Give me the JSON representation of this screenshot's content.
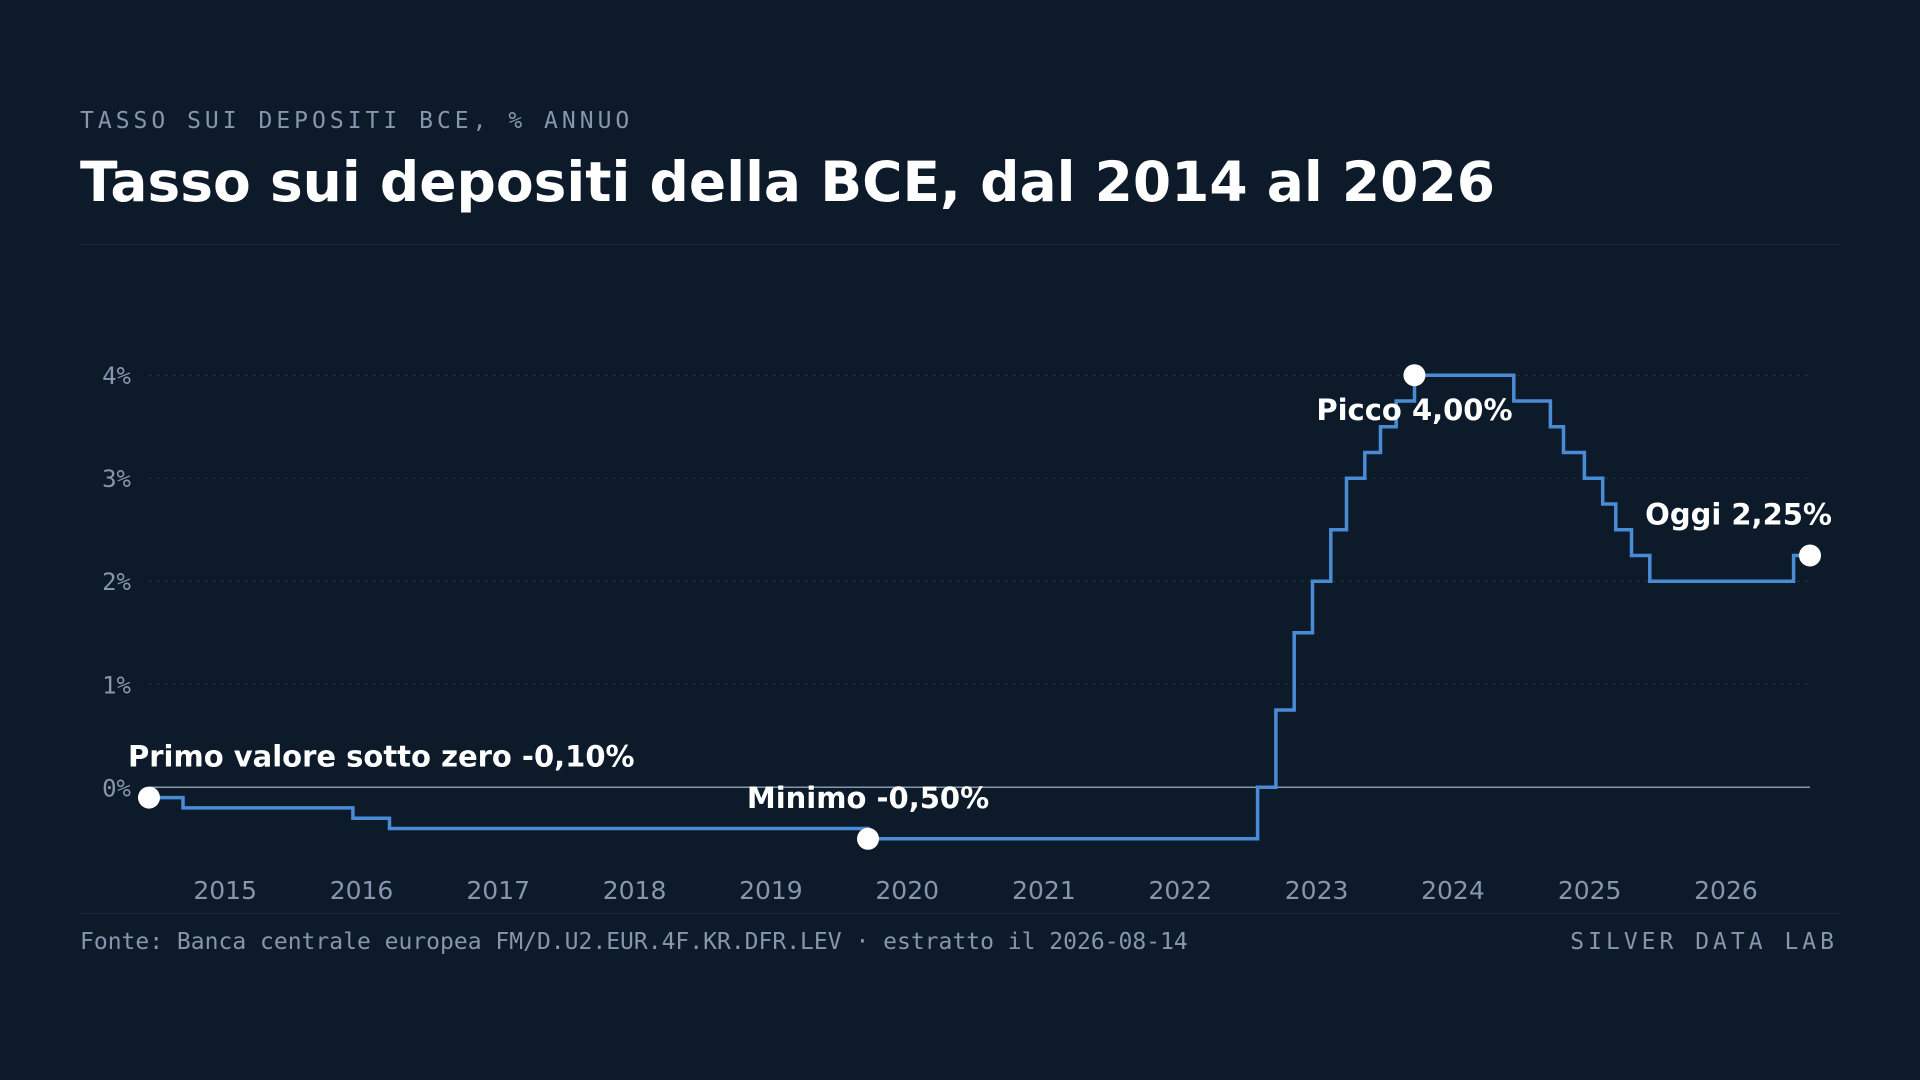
{
  "header": {
    "eyebrow": "TASSO SUI DEPOSITI BCE, % ANNUO",
    "title": "Tasso sui depositi della BCE, dal 2014 al 2026"
  },
  "footer": {
    "source": "Fonte: Banca centrale europea FM/D.U2.EUR.4F.KR.DFR.LEV · estratto il 2026-08-14",
    "brand": "SILVER DATA LAB"
  },
  "colors": {
    "background": "#0d1a2a",
    "line": "#4a8bd6",
    "axis_text": "#8796ad",
    "zero_line": "#8796ad",
    "marker": "#ffffff"
  },
  "chart_data": {
    "type": "line",
    "interpolation": "step-after",
    "xlim": [
      "2014-06-11",
      "2026-08-14"
    ],
    "ylim": [
      -0.9,
      4.4
    ],
    "y_ticks": [
      0,
      1,
      2,
      3,
      4
    ],
    "y_tick_labels": [
      "0%",
      "1%",
      "2%",
      "3%",
      "4%"
    ],
    "x_ticks": [
      "2015-01-01",
      "2016-01-01",
      "2017-01-01",
      "2018-01-01",
      "2019-01-01",
      "2020-01-01",
      "2021-01-01",
      "2022-01-01",
      "2023-01-01",
      "2024-01-01",
      "2025-01-01",
      "2026-01-01"
    ],
    "x_tick_labels": [
      "2015",
      "2016",
      "2017",
      "2018",
      "2019",
      "2020",
      "2021",
      "2022",
      "2023",
      "2024",
      "2025",
      "2026"
    ],
    "grid": "horizontal dotted",
    "series": [
      {
        "points": [
          [
            "2014-06-11",
            -0.1
          ],
          [
            "2014-09-10",
            -0.2
          ],
          [
            "2015-12-09",
            -0.3
          ],
          [
            "2016-03-16",
            -0.4
          ],
          [
            "2019-09-18",
            -0.5
          ],
          [
            "2022-07-27",
            0.0
          ],
          [
            "2022-09-14",
            0.75
          ],
          [
            "2022-11-02",
            1.5
          ],
          [
            "2022-12-21",
            2.0
          ],
          [
            "2023-02-08",
            2.5
          ],
          [
            "2023-03-22",
            3.0
          ],
          [
            "2023-05-10",
            3.25
          ],
          [
            "2023-06-21",
            3.5
          ],
          [
            "2023-08-02",
            3.75
          ],
          [
            "2023-09-20",
            4.0
          ],
          [
            "2024-06-12",
            3.75
          ],
          [
            "2024-09-18",
            3.5
          ],
          [
            "2024-10-23",
            3.25
          ],
          [
            "2024-12-18",
            3.0
          ],
          [
            "2025-02-05",
            2.75
          ],
          [
            "2025-03-12",
            2.5
          ],
          [
            "2025-04-23",
            2.25
          ],
          [
            "2025-06-11",
            2.0
          ],
          [
            "2026-07-01",
            2.0
          ],
          [
            "2026-07-01",
            2.25
          ],
          [
            "2026-08-14",
            2.25
          ]
        ]
      }
    ],
    "annotations": [
      {
        "date": "2014-06-11",
        "value": -0.1,
        "label": "Primo valore sotto zero -0,10%",
        "placement": "above-right"
      },
      {
        "date": "2019-09-18",
        "value": -0.5,
        "label": "Minimo -0,50%",
        "placement": "above"
      },
      {
        "date": "2023-09-20",
        "value": 4.0,
        "label": "Picco 4,00%",
        "placement": "below"
      },
      {
        "date": "2026-08-14",
        "value": 2.25,
        "label": "Oggi 2,25%",
        "placement": "above-left"
      }
    ]
  }
}
